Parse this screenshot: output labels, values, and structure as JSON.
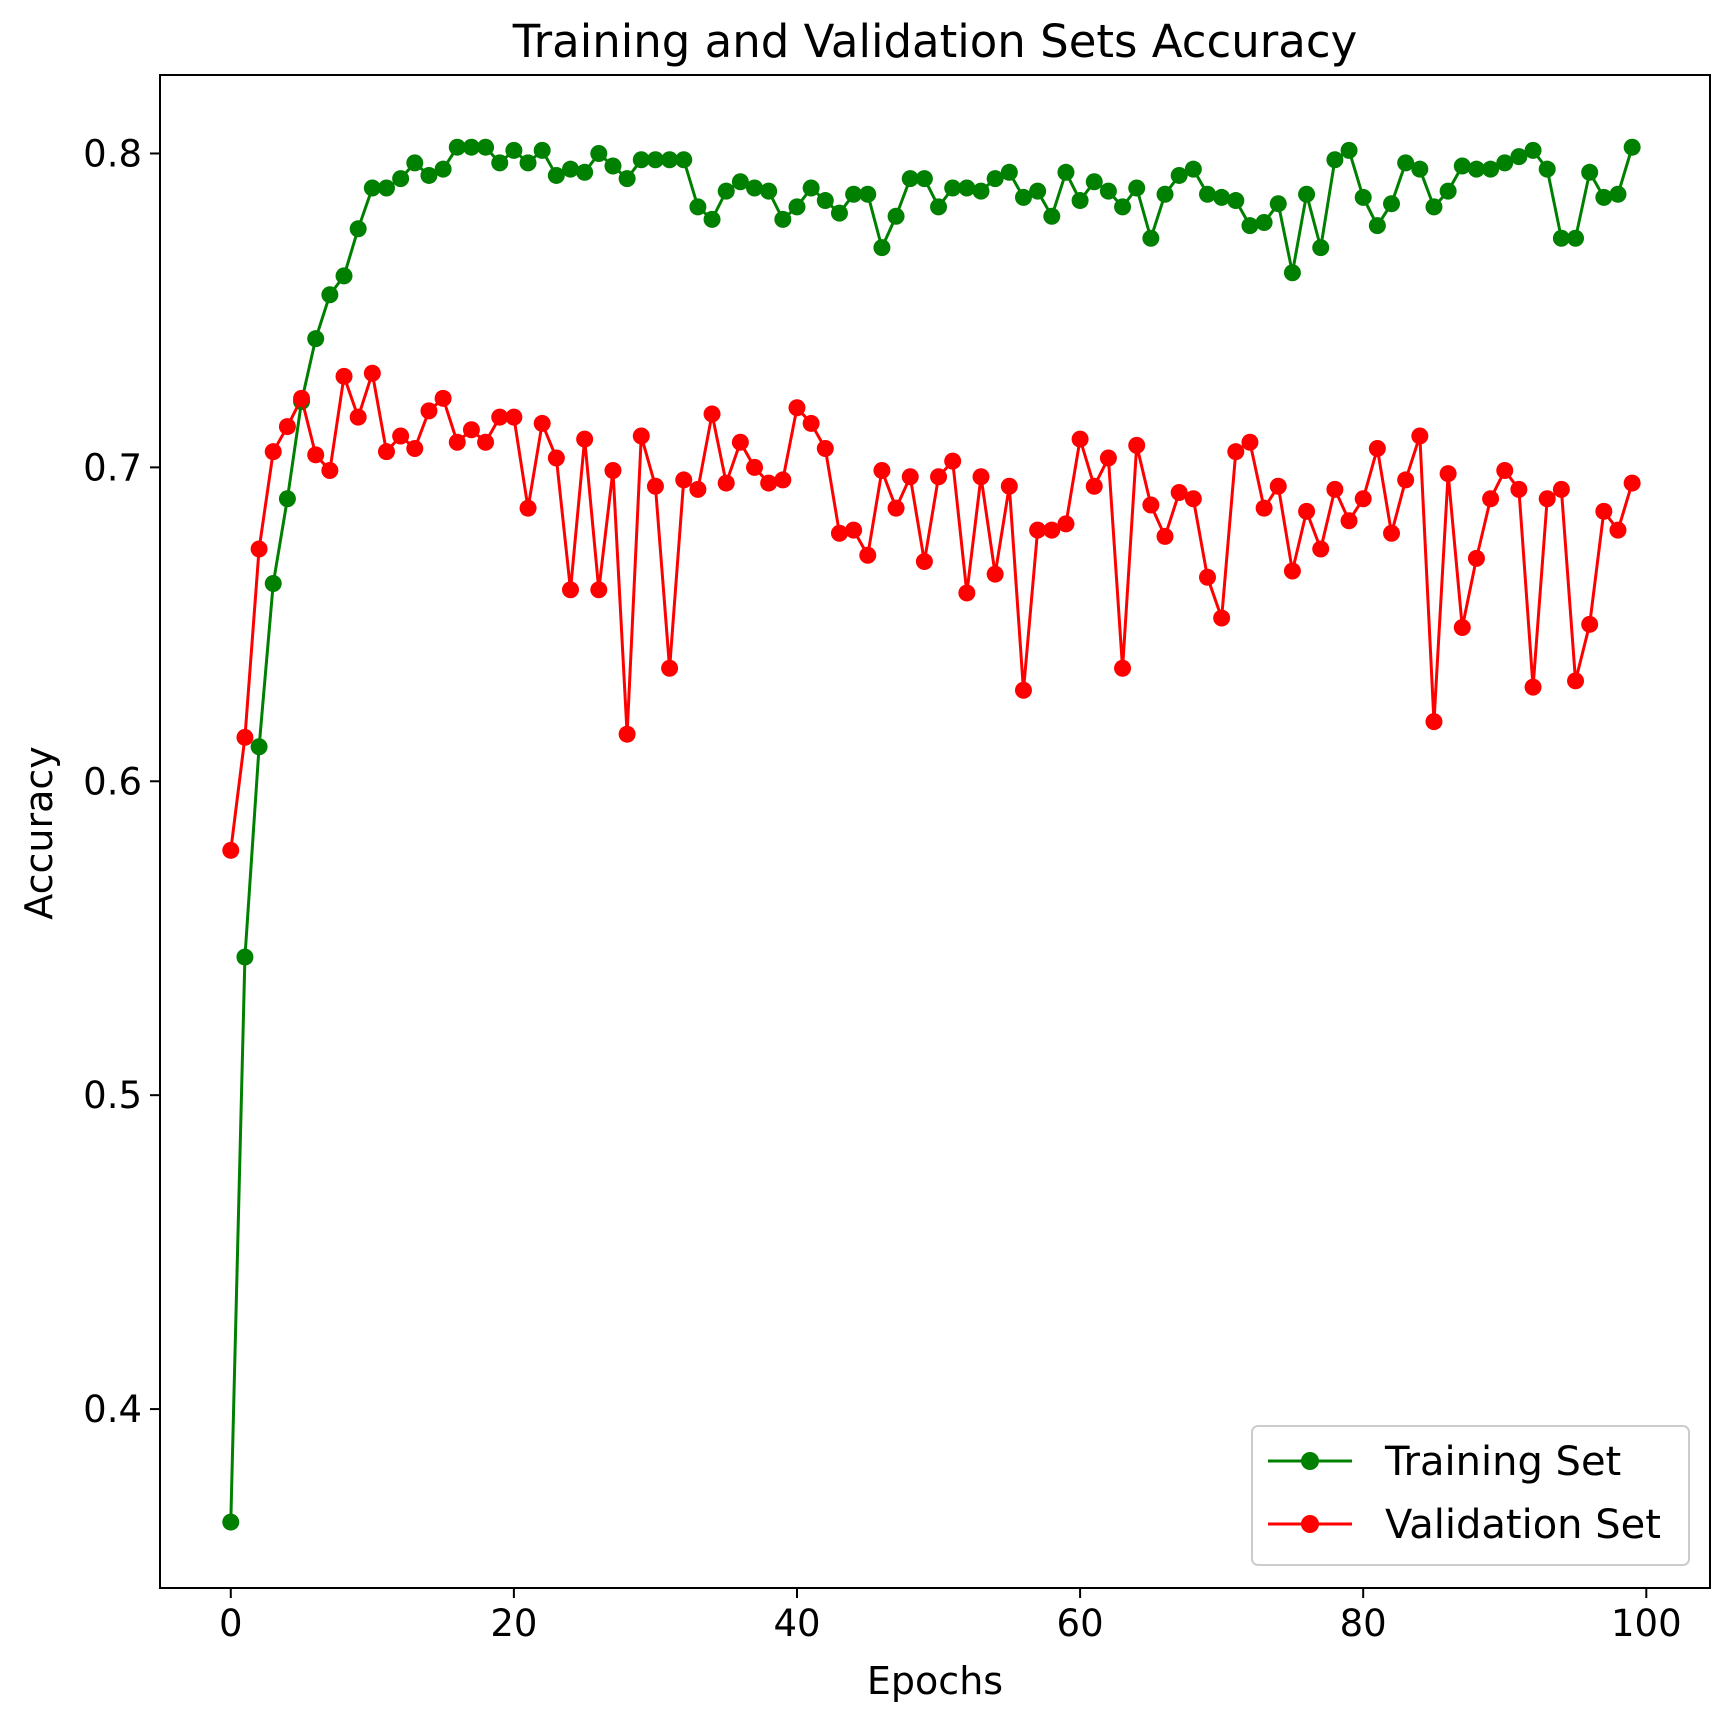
{
  "chart_data": {
    "type": "line",
    "title": "Training and Validation Sets Accuracy",
    "xlabel": "Epochs",
    "ylabel": "Accuracy",
    "xlim": [
      -5,
      104.5
    ],
    "ylim": [
      0.343,
      0.825
    ],
    "xticks": [
      0,
      20,
      40,
      60,
      80,
      100
    ],
    "xtick_labels": [
      "0",
      "20",
      "40",
      "60",
      "80",
      "100"
    ],
    "yticks": [
      0.4,
      0.5,
      0.6,
      0.7,
      0.8
    ],
    "ytick_labels": [
      "0.4",
      "0.5",
      "0.6",
      "0.7",
      "0.8"
    ],
    "grid": false,
    "legend_position": "lower-right",
    "marker": "circle",
    "series": [
      {
        "name": "Training Set",
        "color": "#008000",
        "x": [
          0,
          1,
          2,
          3,
          4,
          5,
          6,
          7,
          8,
          9,
          10,
          11,
          12,
          13,
          14,
          15,
          16,
          17,
          18,
          19,
          20,
          21,
          22,
          23,
          24,
          25,
          26,
          27,
          28,
          29,
          30,
          31,
          32,
          33,
          34,
          35,
          36,
          37,
          38,
          39,
          40,
          41,
          42,
          43,
          44,
          45,
          46,
          47,
          48,
          49,
          50,
          51,
          52,
          53,
          54,
          55,
          56,
          57,
          58,
          59,
          60,
          61,
          62,
          63,
          64,
          65,
          66,
          67,
          68,
          69,
          70,
          71,
          72,
          73,
          74,
          75,
          76,
          77,
          78,
          79,
          80,
          81,
          82,
          83,
          84,
          85,
          86,
          87,
          88,
          89,
          90,
          91,
          92,
          93,
          94,
          95,
          96,
          97,
          98,
          99
        ],
        "values": [
          0.364,
          0.544,
          0.611,
          0.663,
          0.69,
          0.721,
          0.741,
          0.755,
          0.761,
          0.776,
          0.789,
          0.789,
          0.792,
          0.797,
          0.793,
          0.795,
          0.802,
          0.802,
          0.802,
          0.797,
          0.801,
          0.797,
          0.801,
          0.793,
          0.795,
          0.794,
          0.8,
          0.796,
          0.792,
          0.798,
          0.798,
          0.798,
          0.798,
          0.783,
          0.779,
          0.788,
          0.791,
          0.789,
          0.788,
          0.779,
          0.783,
          0.789,
          0.785,
          0.781,
          0.787,
          0.787,
          0.77,
          0.78,
          0.792,
          0.792,
          0.783,
          0.789,
          0.789,
          0.788,
          0.792,
          0.794,
          0.786,
          0.788,
          0.78,
          0.794,
          0.785,
          0.791,
          0.788,
          0.783,
          0.789,
          0.773,
          0.787,
          0.793,
          0.795,
          0.787,
          0.786,
          0.785,
          0.777,
          0.778,
          0.784,
          0.762,
          0.787,
          0.77,
          0.798,
          0.801,
          0.786,
          0.777,
          0.784,
          0.797,
          0.795,
          0.783,
          0.788,
          0.796,
          0.795,
          0.795,
          0.797,
          0.799,
          0.801,
          0.795,
          0.773,
          0.773,
          0.794,
          0.786,
          0.787,
          0.802
        ]
      },
      {
        "name": "Validation Set",
        "color": "#ff0000",
        "x": [
          0,
          1,
          2,
          3,
          4,
          5,
          6,
          7,
          8,
          9,
          10,
          11,
          12,
          13,
          14,
          15,
          16,
          17,
          18,
          19,
          20,
          21,
          22,
          23,
          24,
          25,
          26,
          27,
          28,
          29,
          30,
          31,
          32,
          33,
          34,
          35,
          36,
          37,
          38,
          39,
          40,
          41,
          42,
          43,
          44,
          45,
          46,
          47,
          48,
          49,
          50,
          51,
          52,
          53,
          54,
          55,
          56,
          57,
          58,
          59,
          60,
          61,
          62,
          63,
          64,
          65,
          66,
          67,
          68,
          69,
          70,
          71,
          72,
          73,
          74,
          75,
          76,
          77,
          78,
          79,
          80,
          81,
          82,
          83,
          84,
          85,
          86,
          87,
          88,
          89,
          90,
          91,
          92,
          93,
          94,
          95,
          96,
          97,
          98,
          99
        ],
        "values": [
          0.578,
          0.614,
          0.674,
          0.705,
          0.713,
          0.722,
          0.704,
          0.699,
          0.729,
          0.716,
          0.73,
          0.705,
          0.71,
          0.706,
          0.718,
          0.722,
          0.708,
          0.712,
          0.708,
          0.716,
          0.716,
          0.687,
          0.714,
          0.703,
          0.661,
          0.709,
          0.661,
          0.699,
          0.615,
          0.71,
          0.694,
          0.636,
          0.696,
          0.693,
          0.717,
          0.695,
          0.708,
          0.7,
          0.695,
          0.696,
          0.719,
          0.714,
          0.706,
          0.679,
          0.68,
          0.672,
          0.699,
          0.687,
          0.697,
          0.67,
          0.697,
          0.702,
          0.66,
          0.697,
          0.666,
          0.694,
          0.629,
          0.68,
          0.68,
          0.682,
          0.709,
          0.694,
          0.703,
          0.636,
          0.707,
          0.688,
          0.678,
          0.692,
          0.69,
          0.665,
          0.652,
          0.705,
          0.708,
          0.687,
          0.694,
          0.667,
          0.686,
          0.674,
          0.693,
          0.683,
          0.69,
          0.706,
          0.679,
          0.696,
          0.71,
          0.619,
          0.698,
          0.649,
          0.671,
          0.69,
          0.699,
          0.693,
          0.63,
          0.69,
          0.693,
          0.632,
          0.65,
          0.686,
          0.68,
          0.695
        ]
      }
    ]
  }
}
